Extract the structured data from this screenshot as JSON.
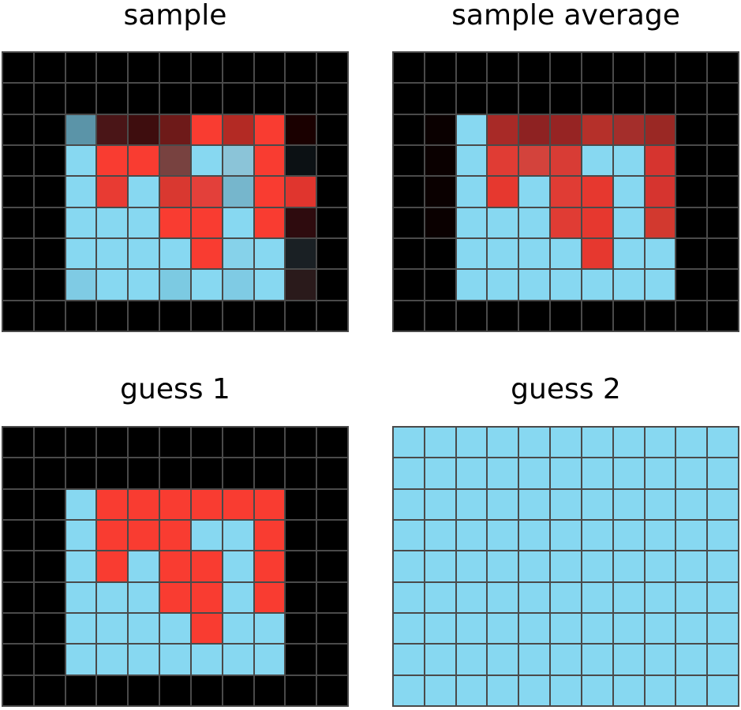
{
  "palette": {
    "K": "#000000",
    "B": "#87d8f1",
    "R": "#f93c31",
    "k1": "#1a0000",
    "k2": "#0c0000",
    "c1": "#5b94a8",
    "r1": "#4a1517",
    "r2": "#3e0d0e",
    "r3": "#6e1a19",
    "r4": "#b32a24",
    "r5": "#784240",
    "r6": "#8bc4d8",
    "r7": "#0c1114",
    "r8": "#e83b33",
    "r9": "#d93830",
    "ra": "#e3403a",
    "rb": "#76b6cc",
    "rc": "#e0352e",
    "rd": "#2e0b0e",
    "re": "#1a2024",
    "rf": "#7fcbe4",
    "rg": "#86d2ea",
    "rh": "#7ccae2",
    "ri": "#2a1a1b",
    "a1": "#a82a27",
    "a2": "#8e2222",
    "a3": "#962423",
    "a4": "#b5302a",
    "a5": "#a42e2b",
    "a6": "#9a2824",
    "a7": "#e03c34",
    "a8": "#d3433c",
    "a9": "#d83c35",
    "aa": "#d6342f",
    "ab": "#e6382f",
    "ac": "#d2392f",
    "ad": "#0a0000"
  },
  "panels": [
    {
      "title": "sample",
      "rows": [
        [
          "K",
          "K",
          "K",
          "K",
          "K",
          "K",
          "K",
          "K",
          "K",
          "K",
          "K"
        ],
        [
          "K",
          "K",
          "K",
          "K",
          "K",
          "K",
          "K",
          "K",
          "K",
          "K",
          "K"
        ],
        [
          "K",
          "K",
          "c1",
          "r1",
          "r2",
          "r3",
          "R",
          "r4",
          "R",
          "k1",
          "K"
        ],
        [
          "K",
          "K",
          "B",
          "R",
          "R",
          "r5",
          "B",
          "r6",
          "R",
          "r7",
          "K"
        ],
        [
          "K",
          "K",
          "B",
          "r8",
          "B",
          "r9",
          "ra",
          "rb",
          "R",
          "rc",
          "K"
        ],
        [
          "K",
          "K",
          "B",
          "B",
          "B",
          "R",
          "R",
          "B",
          "R",
          "rd",
          "K"
        ],
        [
          "K",
          "K",
          "B",
          "B",
          "B",
          "B",
          "R",
          "rg",
          "B",
          "re",
          "K"
        ],
        [
          "K",
          "K",
          "rf",
          "B",
          "B",
          "rh",
          "B",
          "rf",
          "B",
          "ri",
          "K"
        ],
        [
          "K",
          "K",
          "K",
          "K",
          "K",
          "K",
          "K",
          "K",
          "K",
          "K",
          "K"
        ]
      ]
    },
    {
      "title": "sample average",
      "rows": [
        [
          "K",
          "K",
          "K",
          "K",
          "K",
          "K",
          "K",
          "K",
          "K",
          "K",
          "K"
        ],
        [
          "K",
          "K",
          "K",
          "K",
          "K",
          "K",
          "K",
          "K",
          "K",
          "K",
          "K"
        ],
        [
          "K",
          "ad",
          "B",
          "a1",
          "a2",
          "a3",
          "a4",
          "a5",
          "a6",
          "K",
          "K"
        ],
        [
          "K",
          "ad",
          "B",
          "a7",
          "a8",
          "a9",
          "B",
          "B",
          "aa",
          "K",
          "K"
        ],
        [
          "K",
          "ad",
          "B",
          "ab",
          "B",
          "a7",
          "ab",
          "B",
          "aa",
          "K",
          "K"
        ],
        [
          "K",
          "ad",
          "B",
          "B",
          "B",
          "a7",
          "ab",
          "B",
          "ac",
          "K",
          "K"
        ],
        [
          "K",
          "K",
          "B",
          "B",
          "B",
          "B",
          "ab",
          "B",
          "B",
          "K",
          "K"
        ],
        [
          "K",
          "K",
          "B",
          "B",
          "B",
          "B",
          "B",
          "B",
          "B",
          "K",
          "K"
        ],
        [
          "K",
          "K",
          "K",
          "K",
          "K",
          "K",
          "K",
          "K",
          "K",
          "K",
          "K"
        ]
      ]
    },
    {
      "title": "guess 1",
      "rows": [
        [
          "K",
          "K",
          "K",
          "K",
          "K",
          "K",
          "K",
          "K",
          "K",
          "K",
          "K"
        ],
        [
          "K",
          "K",
          "K",
          "K",
          "K",
          "K",
          "K",
          "K",
          "K",
          "K",
          "K"
        ],
        [
          "K",
          "K",
          "B",
          "R",
          "R",
          "R",
          "R",
          "R",
          "R",
          "K",
          "K"
        ],
        [
          "K",
          "K",
          "B",
          "R",
          "R",
          "R",
          "B",
          "B",
          "R",
          "K",
          "K"
        ],
        [
          "K",
          "K",
          "B",
          "R",
          "B",
          "R",
          "R",
          "B",
          "R",
          "K",
          "K"
        ],
        [
          "K",
          "K",
          "B",
          "B",
          "B",
          "R",
          "R",
          "B",
          "R",
          "K",
          "K"
        ],
        [
          "K",
          "K",
          "B",
          "B",
          "B",
          "B",
          "R",
          "B",
          "B",
          "K",
          "K"
        ],
        [
          "K",
          "K",
          "B",
          "B",
          "B",
          "B",
          "B",
          "B",
          "B",
          "K",
          "K"
        ],
        [
          "K",
          "K",
          "K",
          "K",
          "K",
          "K",
          "K",
          "K",
          "K",
          "K",
          "K"
        ]
      ]
    },
    {
      "title": "guess 2",
      "rows": [
        [
          "B",
          "B",
          "B",
          "B",
          "B",
          "B",
          "B",
          "B",
          "B",
          "B",
          "B"
        ],
        [
          "B",
          "B",
          "B",
          "B",
          "B",
          "B",
          "B",
          "B",
          "B",
          "B",
          "B"
        ],
        [
          "B",
          "B",
          "B",
          "B",
          "B",
          "B",
          "B",
          "B",
          "B",
          "B",
          "B"
        ],
        [
          "B",
          "B",
          "B",
          "B",
          "B",
          "B",
          "B",
          "B",
          "B",
          "B",
          "B"
        ],
        [
          "B",
          "B",
          "B",
          "B",
          "B",
          "B",
          "B",
          "B",
          "B",
          "B",
          "B"
        ],
        [
          "B",
          "B",
          "B",
          "B",
          "B",
          "B",
          "B",
          "B",
          "B",
          "B",
          "B"
        ],
        [
          "B",
          "B",
          "B",
          "B",
          "B",
          "B",
          "B",
          "B",
          "B",
          "B",
          "B"
        ],
        [
          "B",
          "B",
          "B",
          "B",
          "B",
          "B",
          "B",
          "B",
          "B",
          "B",
          "B"
        ],
        [
          "B",
          "B",
          "B",
          "B",
          "B",
          "B",
          "B",
          "B",
          "B",
          "B",
          "B"
        ]
      ]
    }
  ]
}
